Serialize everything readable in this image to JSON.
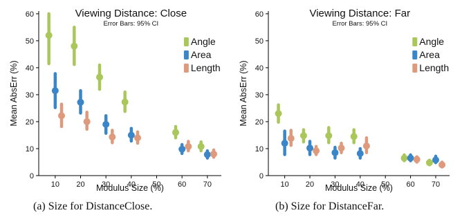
{
  "colors": {
    "Angle": "#a9c75a",
    "Area": "#3a86c8",
    "Length": "#de9a7d"
  },
  "chart_data": [
    {
      "type": "scatter",
      "title": "Viewing Distance: Close",
      "subtitle": "Error Bars: 95% CI",
      "xlabel": "Modulus Size (%)",
      "ylabel": "Mean AbsErr (%)",
      "xticks": [
        "10",
        "20",
        "30",
        "40",
        "50",
        "60",
        "70"
      ],
      "yticks": [
        "0",
        "10",
        "20",
        "30",
        "40",
        "50",
        "60"
      ],
      "xlim": [
        3.5,
        75.5
      ],
      "ylim": [
        0,
        61
      ],
      "legend": [
        "Angle",
        "Area",
        "Length"
      ],
      "legend_position": "top-right",
      "caption": "(a)  Size for DistanceClose.",
      "series": [
        {
          "name": "Angle",
          "x": [
            7.5,
            17.5,
            27.5,
            37.5,
            57.5,
            67.5
          ],
          "y": [
            52,
            48,
            36.5,
            27.3,
            16,
            10.8
          ],
          "ci_low": [
            41.5,
            41.2,
            32,
            23.8,
            14,
            9.2
          ],
          "ci_high": [
            60,
            55,
            41,
            31,
            18.2,
            12.5
          ]
        },
        {
          "name": "Area",
          "x": [
            10,
            20,
            30,
            40,
            60,
            70
          ],
          "y": [
            31.5,
            27.2,
            19,
            15,
            9.8,
            7.8
          ],
          "ci_low": [
            25.2,
            23.2,
            15.7,
            12.8,
            8.2,
            6.5
          ],
          "ci_high": [
            37.8,
            31.5,
            22.2,
            17.5,
            11.5,
            9.2
          ]
        },
        {
          "name": "Length",
          "x": [
            12.5,
            22.5,
            32.5,
            42.5,
            62.5,
            72.5
          ],
          "y": [
            22.2,
            20,
            14.3,
            14,
            10.8,
            8
          ],
          "ci_low": [
            18.2,
            17.2,
            12.2,
            12,
            9.2,
            6.8
          ],
          "ci_high": [
            26.5,
            23.5,
            16.8,
            16.2,
            12.7,
            9.5
          ]
        }
      ]
    },
    {
      "type": "scatter",
      "title": "Viewing Distance: Far",
      "subtitle": "Error Bars: 95% CI",
      "xlabel": "Modulus Size (%)",
      "ylabel": "Mean AbsErr (%)",
      "xticks": [
        "10",
        "20",
        "30",
        "40",
        "50",
        "60",
        "70"
      ],
      "yticks": [
        "0",
        "10",
        "20",
        "30",
        "40",
        "50",
        "60"
      ],
      "xlim": [
        3.5,
        75.5
      ],
      "ylim": [
        0,
        61
      ],
      "legend": [
        "Angle",
        "Area",
        "Length"
      ],
      "legend_position": "top-right",
      "caption": "(b)  Size for DistanceFar.",
      "series": [
        {
          "name": "Angle",
          "x": [
            7.5,
            17.5,
            27.5,
            37.5,
            57.5,
            67.5
          ],
          "y": [
            23,
            14.8,
            14.8,
            14.5,
            6.5,
            4.8
          ],
          "ci_low": [
            19.8,
            12.5,
            12.2,
            12.2,
            5.5,
            4
          ],
          "ci_high": [
            26.2,
            17,
            17.8,
            17,
            7.7,
            5.7
          ]
        },
        {
          "name": "Area",
          "x": [
            10,
            20,
            30,
            40,
            60,
            70
          ],
          "y": [
            12,
            10.2,
            8.5,
            8.2,
            6.5,
            5.8
          ],
          "ci_low": [
            7.8,
            7.8,
            6.5,
            6.5,
            5.5,
            4.8
          ],
          "ci_high": [
            16.5,
            12.7,
            10.5,
            10,
            7.7,
            7.2
          ]
        },
        {
          "name": "Length",
          "x": [
            12.5,
            22.5,
            32.5,
            42.5,
            62.5,
            72.5
          ],
          "y": [
            13.8,
            9.2,
            10.2,
            11,
            6,
            4
          ],
          "ci_low": [
            11.2,
            7.8,
            8.5,
            8.5,
            5,
            3.2
          ],
          "ci_high": [
            16.8,
            10.8,
            12,
            14,
            7,
            5
          ]
        }
      ]
    }
  ]
}
